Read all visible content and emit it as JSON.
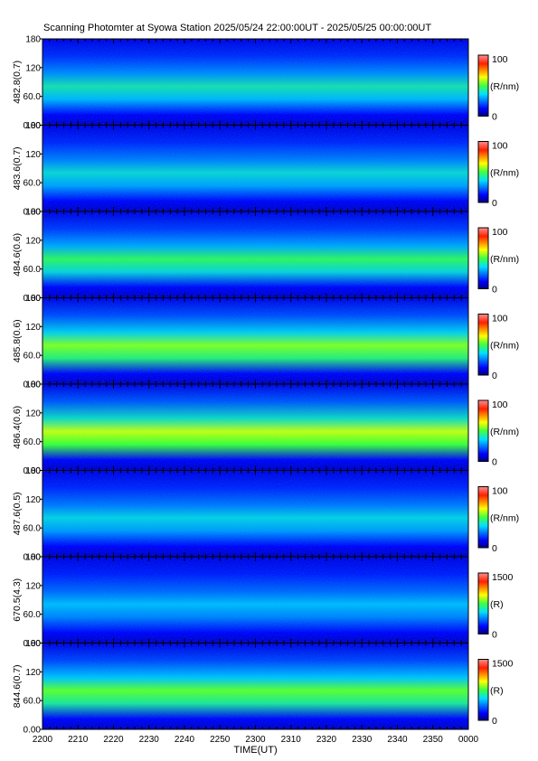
{
  "title": "Scanning Photomter at Syowa Station  2025/05/24 22:00:00UT - 2025/05/25 00:00:00UT",
  "chart_data": {
    "type": "heatmap",
    "xlabel": "TIME(UT)",
    "x_ticks": [
      "2200",
      "2210",
      "2220",
      "2230",
      "2240",
      "2250",
      "2300",
      "2310",
      "2320",
      "2330",
      "2340",
      "2350",
      "0000"
    ],
    "y_ticks": [
      "0.00",
      "60.0",
      "120",
      "180"
    ],
    "ylim": [
      0,
      180
    ],
    "panels": [
      {
        "label": "482.8(0.7)",
        "colorbar": {
          "min": "0",
          "max": "100",
          "unit": "(R/nm)"
        },
        "intensity": 0.35
      },
      {
        "label": "483.6(0.7)",
        "colorbar": {
          "min": "0",
          "max": "100",
          "unit": "(R/nm)"
        },
        "intensity": 0.3
      },
      {
        "label": "484.6(0.6)",
        "colorbar": {
          "min": "0",
          "max": "100",
          "unit": "(R/nm)"
        },
        "intensity": 0.45
      },
      {
        "label": "485.8(0.6)",
        "colorbar": {
          "min": "0",
          "max": "100",
          "unit": "(R/nm)"
        },
        "intensity": 0.6
      },
      {
        "label": "486.4(0.6)",
        "colorbar": {
          "min": "0",
          "max": "100",
          "unit": "(R/nm)"
        },
        "intensity": 0.7
      },
      {
        "label": "487.6(0.5)",
        "colorbar": {
          "min": "0",
          "max": "100",
          "unit": "(R/nm)"
        },
        "intensity": 0.28
      },
      {
        "label": "670.5(4.3)",
        "colorbar": {
          "min": "0",
          "max": "1500",
          "unit": "(R)"
        },
        "intensity": 0.22
      },
      {
        "label": "844.6(0.7)",
        "colorbar": {
          "min": "0",
          "max": "1500",
          "unit": "(R)"
        },
        "intensity": 0.55
      }
    ]
  }
}
